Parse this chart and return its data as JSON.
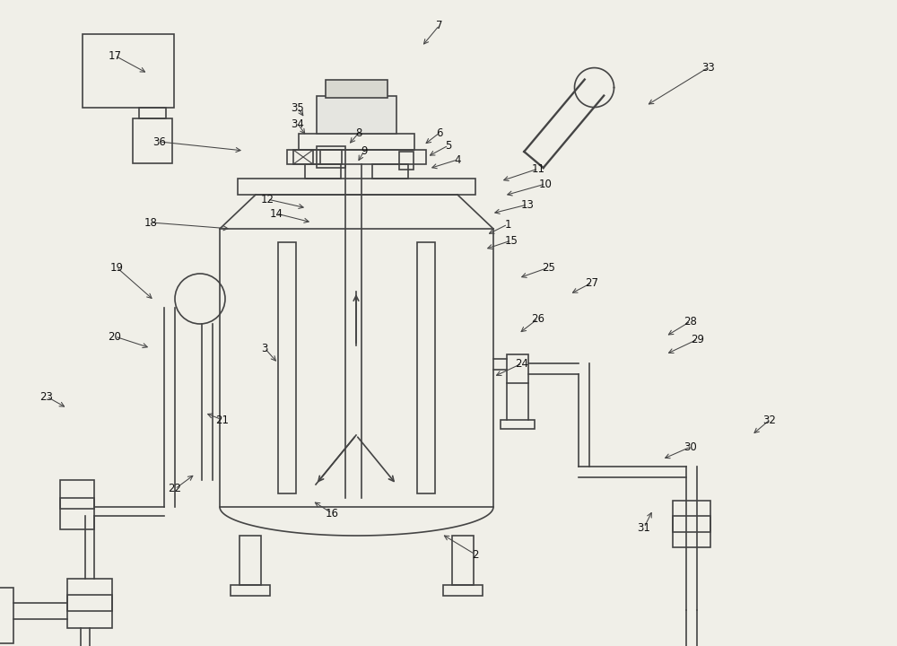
{
  "bg": "#f0efe8",
  "lc": "#444444",
  "lw": 1.2,
  "labels": [
    [
      "17",
      128,
      62,
      165,
      82
    ],
    [
      "7",
      490,
      28,
      470,
      52
    ],
    [
      "33",
      790,
      75,
      720,
      118
    ],
    [
      "35",
      332,
      120,
      340,
      132
    ],
    [
      "34",
      332,
      138,
      342,
      152
    ],
    [
      "36",
      178,
      158,
      272,
      168
    ],
    [
      "8",
      400,
      148,
      388,
      162
    ],
    [
      "9",
      406,
      168,
      398,
      182
    ],
    [
      "6",
      490,
      148,
      472,
      162
    ],
    [
      "5",
      500,
      162,
      476,
      175
    ],
    [
      "4",
      510,
      178,
      478,
      188
    ],
    [
      "12",
      298,
      222,
      342,
      232
    ],
    [
      "14",
      308,
      238,
      348,
      248
    ],
    [
      "18",
      168,
      248,
      258,
      255
    ],
    [
      "11",
      600,
      188,
      558,
      202
    ],
    [
      "10",
      608,
      205,
      562,
      218
    ],
    [
      "13",
      588,
      228,
      548,
      238
    ],
    [
      "1",
      566,
      250,
      542,
      262
    ],
    [
      "15",
      570,
      268,
      540,
      278
    ],
    [
      "19",
      130,
      298,
      172,
      335
    ],
    [
      "20",
      128,
      375,
      168,
      388
    ],
    [
      "3",
      295,
      388,
      310,
      405
    ],
    [
      "25",
      612,
      298,
      578,
      310
    ],
    [
      "27",
      660,
      315,
      635,
      328
    ],
    [
      "26",
      600,
      355,
      578,
      372
    ],
    [
      "24",
      582,
      405,
      550,
      420
    ],
    [
      "21",
      248,
      468,
      228,
      460
    ],
    [
      "28",
      770,
      358,
      742,
      375
    ],
    [
      "29",
      778,
      378,
      742,
      395
    ],
    [
      "23",
      52,
      442,
      75,
      455
    ],
    [
      "22",
      195,
      545,
      218,
      528
    ],
    [
      "16",
      370,
      572,
      348,
      558
    ],
    [
      "2",
      530,
      618,
      492,
      595
    ],
    [
      "30",
      770,
      498,
      738,
      512
    ],
    [
      "31",
      718,
      588,
      728,
      568
    ],
    [
      "32",
      858,
      468,
      838,
      485
    ]
  ]
}
